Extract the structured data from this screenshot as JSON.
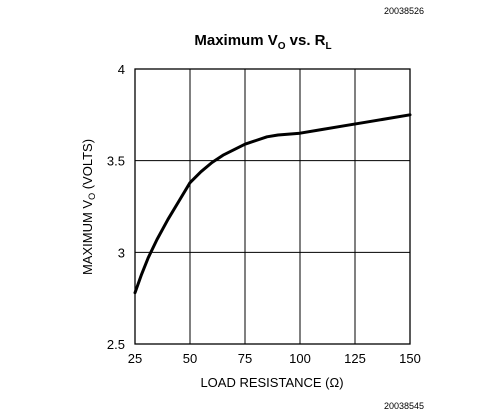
{
  "figure_codes": {
    "top": "20038526",
    "bottom": "20038545"
  },
  "chart_data": {
    "type": "line",
    "title": {
      "main": "Maximum V",
      "sub1": "O",
      "mid": " vs. R",
      "sub2": "L"
    },
    "xlabel": "LOAD RESISTANCE (Ω)",
    "ylabel": {
      "pre": "MAXIMUM V",
      "sub": "O",
      "post": " (VOLTS)"
    },
    "xlim": [
      25,
      150
    ],
    "ylim": [
      2.5,
      4
    ],
    "x_ticks": [
      25,
      50,
      75,
      100,
      125,
      150
    ],
    "x_tick_labels": [
      "25",
      "50",
      "75",
      "100",
      "125",
      "150"
    ],
    "y_ticks": [
      2.5,
      3,
      3.5,
      4
    ],
    "y_tick_labels": [
      "2.5",
      "3",
      "3.5",
      "4"
    ],
    "grid": true,
    "series": [
      {
        "x": [
          25,
          28,
          31,
          35,
          40,
          45,
          50,
          55,
          60,
          65,
          70,
          75,
          80,
          85,
          90,
          95,
          100,
          110,
          120,
          130,
          140,
          150
        ],
        "y": [
          2.78,
          2.88,
          2.97,
          3.07,
          3.18,
          3.28,
          3.38,
          3.44,
          3.49,
          3.53,
          3.56,
          3.59,
          3.61,
          3.63,
          3.64,
          3.645,
          3.65,
          3.67,
          3.69,
          3.71,
          3.73,
          3.75
        ]
      }
    ]
  }
}
